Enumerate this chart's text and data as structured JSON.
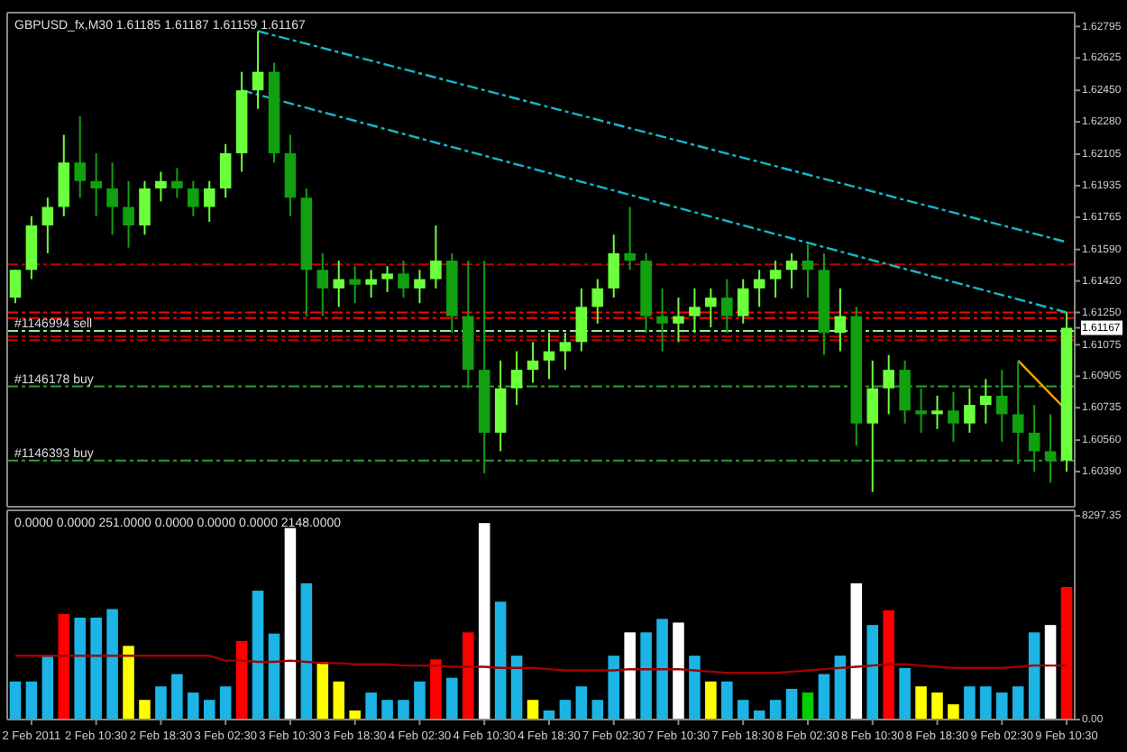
{
  "chart_data": [
    {
      "type": "candlestick",
      "title": "GBPUSD_fx,M30  1.61185 1.61187 1.61159 1.61167",
      "tick_labels": "y",
      "grid": false,
      "categories": [
        null,
        null,
        null,
        null,
        null,
        null,
        null,
        null,
        null,
        null,
        null,
        null,
        null,
        null,
        null,
        null,
        null,
        null,
        null,
        null,
        null,
        null,
        null,
        null,
        null,
        null,
        null,
        null,
        null,
        null,
        null,
        null,
        null,
        null,
        null,
        null,
        null,
        null,
        null,
        null,
        null,
        null,
        null,
        null,
        null,
        null,
        null,
        null,
        null,
        null,
        null,
        null,
        null,
        null,
        null,
        null,
        null,
        null,
        null,
        null,
        null,
        null,
        null,
        null,
        null,
        null
      ],
      "ylim": [
        1.602,
        1.6287
      ],
      "yticks": [
        {
          "value": 1.6039,
          "label": "1.60390"
        },
        {
          "value": 1.6056,
          "label": "1.60560"
        },
        1.60735,
        1.60905,
        1.61075,
        {
          "value": 1.6125,
          "label": "1.61250"
        },
        {
          "value": 1.6142,
          "label": "1.61420"
        },
        {
          "value": 1.6159,
          "label": "1.61590"
        },
        1.61765,
        1.61935,
        1.62105,
        {
          "value": 1.6228,
          "label": "1.62280"
        },
        {
          "value": 1.6245,
          "label": "1.62450"
        },
        1.62625,
        1.62795,
        {
          "value": 1.61167,
          "label": "1.61167"
        }
      ],
      "ohlc": [
        [
          1.6133,
          1.6148,
          1.613,
          1.6148
        ],
        [
          1.6148,
          1.6177,
          1.6143,
          1.6172
        ],
        [
          1.6172,
          1.6187,
          1.6157,
          1.6182
        ],
        [
          1.6182,
          1.6221,
          1.6177,
          1.6206
        ],
        [
          1.6206,
          1.6231,
          1.6187,
          1.6196
        ],
        [
          1.6196,
          1.6211,
          1.6177,
          1.6192
        ],
        [
          1.6192,
          1.6206,
          1.6167,
          1.6182
        ],
        [
          1.6182,
          1.6196,
          1.616,
          1.6172
        ],
        [
          1.6172,
          1.6196,
          1.6167,
          1.6192
        ],
        [
          1.6192,
          1.6201,
          1.6185,
          1.6196
        ],
        [
          1.6196,
          1.6203,
          1.6187,
          1.6192
        ],
        [
          1.6192,
          1.6196,
          1.6177,
          1.6182
        ],
        [
          1.6182,
          1.6196,
          1.6174,
          1.6192
        ],
        [
          1.6192,
          1.6216,
          1.6187,
          1.6211
        ],
        [
          1.6211,
          1.6255,
          1.6201,
          1.6245
        ],
        [
          1.6245,
          1.6277,
          1.6235,
          1.6255
        ],
        [
          1.6255,
          1.626,
          1.6206,
          1.6211
        ],
        [
          1.6211,
          1.6221,
          1.6177,
          1.6187
        ],
        [
          1.6187,
          1.6192,
          1.6123,
          1.6148
        ],
        [
          1.6148,
          1.6157,
          1.6123,
          1.6138
        ],
        [
          1.6138,
          1.6153,
          1.6128,
          1.6143
        ],
        [
          1.6143,
          1.615,
          1.613,
          1.614
        ],
        [
          1.614,
          1.6148,
          1.6133,
          1.6143
        ],
        [
          1.6143,
          1.615,
          1.6136,
          1.6146
        ],
        [
          1.6146,
          1.6153,
          1.6133,
          1.6138
        ],
        [
          1.6138,
          1.6148,
          1.613,
          1.6143
        ],
        [
          1.6143,
          1.6172,
          1.6138,
          1.6153
        ],
        [
          1.6153,
          1.6157,
          1.6114,
          1.6123
        ],
        [
          1.6123,
          1.6153,
          1.6084,
          1.6094
        ],
        [
          1.6094,
          1.6153,
          1.6038,
          1.606
        ],
        [
          1.606,
          1.6099,
          1.605,
          1.6084
        ],
        [
          1.6084,
          1.6104,
          1.6075,
          1.6094
        ],
        [
          1.6094,
          1.6109,
          1.6087,
          1.6099
        ],
        [
          1.6099,
          1.6114,
          1.6089,
          1.6104
        ],
        [
          1.6104,
          1.6114,
          1.6094,
          1.6109
        ],
        [
          1.6109,
          1.6138,
          1.6104,
          1.6128
        ],
        [
          1.6128,
          1.6143,
          1.6119,
          1.6138
        ],
        [
          1.6138,
          1.6167,
          1.6133,
          1.6157
        ],
        [
          1.6157,
          1.6182,
          1.6148,
          1.6153
        ],
        [
          1.6153,
          1.6157,
          1.6114,
          1.6123
        ],
        [
          1.6123,
          1.6138,
          1.6104,
          1.6119
        ],
        [
          1.6119,
          1.6133,
          1.6109,
          1.6123
        ],
        [
          1.6123,
          1.6138,
          1.6114,
          1.6128
        ],
        [
          1.6128,
          1.6138,
          1.6117,
          1.6133
        ],
        [
          1.6133,
          1.6143,
          1.6114,
          1.6123
        ],
        [
          1.6123,
          1.6143,
          1.6119,
          1.6138
        ],
        [
          1.6138,
          1.6148,
          1.6128,
          1.6143
        ],
        [
          1.6143,
          1.6153,
          1.6133,
          1.6148
        ],
        [
          1.6148,
          1.6157,
          1.6138,
          1.6153
        ],
        [
          1.6153,
          1.6162,
          1.6133,
          1.6148
        ],
        [
          1.6148,
          1.6157,
          1.6102,
          1.6114
        ],
        [
          1.6114,
          1.6138,
          1.6104,
          1.6123
        ],
        [
          1.6123,
          1.6128,
          1.6053,
          1.6065
        ],
        [
          1.6065,
          1.6099,
          1.6028,
          1.6084
        ],
        [
          1.6084,
          1.6102,
          1.607,
          1.6094
        ],
        [
          1.6094,
          1.6099,
          1.6065,
          1.6072
        ],
        [
          1.6072,
          1.6084,
          1.606,
          1.607
        ],
        [
          1.607,
          1.608,
          1.6062,
          1.6072
        ],
        [
          1.6072,
          1.6082,
          1.6055,
          1.6065
        ],
        [
          1.6065,
          1.6084,
          1.606,
          1.6075
        ],
        [
          1.6075,
          1.6089,
          1.6065,
          1.608
        ],
        [
          1.608,
          1.6094,
          1.6055,
          1.607
        ],
        [
          1.607,
          1.6099,
          1.6043,
          1.606
        ],
        [
          1.606,
          1.6075,
          1.6039,
          1.605
        ],
        [
          1.605,
          1.607,
          1.6033,
          1.6045
        ],
        [
          1.6045,
          1.6125,
          1.6039,
          1.61167
        ]
      ],
      "series": [
        {
          "type": "line",
          "color": "#17b8c8",
          "line_style": "dashed",
          "values": [
            null,
            null,
            null,
            null,
            null,
            null,
            null,
            null,
            null,
            null,
            null,
            null,
            null,
            null,
            null,
            1.6277,
            null,
            null,
            null,
            null,
            null,
            null,
            null,
            null,
            null,
            null,
            null,
            null,
            null,
            null,
            null,
            null,
            null,
            null,
            null,
            null,
            null,
            null,
            null,
            null,
            null,
            null,
            null,
            null,
            null,
            null,
            null,
            null,
            null,
            null,
            null,
            null,
            null,
            null,
            null,
            null,
            null,
            null,
            null,
            null,
            null,
            null,
            null,
            null,
            null,
            1.6163
          ]
        },
        {
          "type": "line",
          "color": "#17b8c8",
          "line_style": "dashed",
          "values": [
            null,
            null,
            null,
            null,
            null,
            null,
            null,
            null,
            null,
            null,
            null,
            null,
            null,
            null,
            1.6245,
            null,
            null,
            null,
            null,
            null,
            null,
            null,
            null,
            null,
            null,
            null,
            null,
            null,
            null,
            null,
            null,
            null,
            null,
            null,
            null,
            null,
            null,
            null,
            null,
            null,
            null,
            null,
            null,
            null,
            null,
            null,
            null,
            null,
            null,
            null,
            null,
            null,
            null,
            null,
            null,
            null,
            null,
            null,
            null,
            null,
            null,
            null,
            null,
            null,
            null,
            1.6125
          ]
        },
        {
          "type": "line",
          "color": "#ffa500",
          "line_style": "solid",
          "values": [
            null,
            null,
            null,
            null,
            null,
            null,
            null,
            null,
            null,
            null,
            null,
            null,
            null,
            null,
            null,
            null,
            null,
            null,
            null,
            null,
            null,
            null,
            null,
            null,
            null,
            null,
            null,
            null,
            null,
            null,
            null,
            null,
            null,
            null,
            null,
            null,
            null,
            null,
            null,
            null,
            null,
            null,
            null,
            null,
            null,
            null,
            null,
            null,
            null,
            null,
            null,
            null,
            null,
            null,
            null,
            null,
            null,
            null,
            null,
            null,
            null,
            null,
            1.6099,
            null,
            null,
            1.6072
          ]
        }
      ],
      "ref_lines": [
        {
          "axis": "y",
          "value": 1.6151,
          "color": "#c00000",
          "line_style": "dashed"
        },
        {
          "axis": "y",
          "value": 1.6125,
          "color": "#ff0000",
          "line_style": "dashed"
        },
        {
          "axis": "y",
          "value": 1.6122,
          "color": "#ff0000",
          "line_style": "dashed"
        },
        {
          "axis": "y",
          "value": 1.6115,
          "label": "#1146994 sell",
          "color": "#90ee90",
          "line_style": "dashed"
        },
        {
          "axis": "y",
          "value": 1.6112,
          "color": "#c00000",
          "line_style": "dashed"
        },
        {
          "axis": "y",
          "value": 1.611,
          "color": "#c00000",
          "line_style": "dashed"
        },
        {
          "axis": "y",
          "value": 1.6085,
          "label": "#1146178 buy",
          "color": "#2e9e2e",
          "line_style": "dashed"
        },
        {
          "axis": "y",
          "value": 1.6045,
          "label": "#1146393 buy",
          "color": "#2e9e2e",
          "line_style": "dashed"
        }
      ]
    },
    {
      "type": "bar",
      "title": "0.0000 0.0000 251.0000 0.0000 0.0000 0.0000 2148.0000",
      "grid": false,
      "categories": [
        null,
        "2 Feb 2011",
        null,
        null,
        null,
        "2 Feb 10:30",
        null,
        null,
        null,
        "2 Feb 18:30",
        null,
        null,
        null,
        "3 Feb 02:30",
        null,
        null,
        null,
        "3 Feb 10:30",
        null,
        null,
        null,
        "3 Feb 18:30",
        null,
        null,
        null,
        "4 Feb 02:30",
        null,
        null,
        null,
        "4 Feb 10:30",
        null,
        null,
        null,
        "4 Feb 18:30",
        null,
        null,
        null,
        "7 Feb 02:30",
        null,
        null,
        null,
        "7 Feb 10:30",
        null,
        null,
        null,
        "7 Feb 18:30",
        null,
        null,
        null,
        "8 Feb 02:30",
        null,
        null,
        null,
        "8 Feb 10:30",
        null,
        null,
        null,
        "8 Feb 18:30",
        null,
        null,
        null,
        "9 Feb 02:30",
        null,
        null,
        null,
        "9 Feb 10:30"
      ],
      "ylim": [
        0,
        8520
      ],
      "yticks": [
        {
          "value": 0,
          "label": "0.00"
        },
        8297.35
      ],
      "series": [
        {
          "type": "bar",
          "values": [
            1550,
            1550,
            2600,
            4300,
            4150,
            4150,
            4500,
            3000,
            800,
            1350,
            1850,
            1100,
            800,
            1350,
            3200,
            5250,
            3500,
            7800,
            5550,
            2350,
            1550,
            370,
            1100,
            800,
            800,
            1550,
            2450,
            1700,
            3550,
            8000,
            4800,
            2600,
            800,
            370,
            800,
            1350,
            800,
            2600,
            3550,
            3550,
            4100,
            3950,
            2600,
            1550,
            1550,
            800,
            370,
            800,
            1250,
            1100,
            1850,
            2600,
            5550,
            3850,
            4450,
            2100,
            1350,
            1100,
            620,
            1350,
            1350,
            1100,
            1350,
            3550,
            3850,
            5400
          ],
          "colors": [
            "#1cb4e4",
            "#1cb4e4",
            "#1cb4e4",
            "#ff0000",
            "#1cb4e4",
            "#1cb4e4",
            "#1cb4e4",
            "#ffff00",
            "#ffff00",
            "#1cb4e4",
            "#1cb4e4",
            "#1cb4e4",
            "#1cb4e4",
            "#1cb4e4",
            "#ff0000",
            "#1cb4e4",
            "#1cb4e4",
            "#ffffff",
            "#1cb4e4",
            "#ffff00",
            "#ffff00",
            "#ffff00",
            "#1cb4e4",
            "#1cb4e4",
            "#1cb4e4",
            "#1cb4e4",
            "#ff0000",
            "#1cb4e4",
            "#ff0000",
            "#ffffff",
            "#1cb4e4",
            "#1cb4e4",
            "#ffff00",
            "#1cb4e4",
            "#1cb4e4",
            "#1cb4e4",
            "#1cb4e4",
            "#1cb4e4",
            "#ffffff",
            "#1cb4e4",
            "#1cb4e4",
            "#ffffff",
            "#1cb4e4",
            "#ffff00",
            "#1cb4e4",
            "#1cb4e4",
            "#1cb4e4",
            "#1cb4e4",
            "#1cb4e4",
            "#00d000",
            "#1cb4e4",
            "#1cb4e4",
            "#ffffff",
            "#1cb4e4",
            "#ff0000",
            "#1cb4e4",
            "#ffff00",
            "#ffff00",
            "#ffff00",
            "#1cb4e4",
            "#1cb4e4",
            "#1cb4e4",
            "#1cb4e4",
            "#1cb4e4",
            "#ffffff",
            "#ff0000"
          ]
        },
        {
          "type": "line",
          "color": "#a00000",
          "values": [
            2600,
            2600,
            2600,
            2600,
            2600,
            2600,
            2600,
            2600,
            2600,
            2600,
            2600,
            2600,
            2600,
            2400,
            2400,
            2350,
            2350,
            2400,
            2350,
            2300,
            2300,
            2250,
            2250,
            2250,
            2200,
            2200,
            2200,
            2150,
            2150,
            2150,
            2100,
            2100,
            2100,
            2050,
            2000,
            2000,
            2000,
            2000,
            2050,
            2050,
            2050,
            2050,
            2000,
            1950,
            1900,
            1900,
            1900,
            1900,
            1950,
            2000,
            2050,
            2100,
            2150,
            2200,
            2250,
            2250,
            2200,
            2150,
            2100,
            2100,
            2100,
            2100,
            2150,
            2200,
            2200,
            2200
          ]
        }
      ]
    }
  ]
}
